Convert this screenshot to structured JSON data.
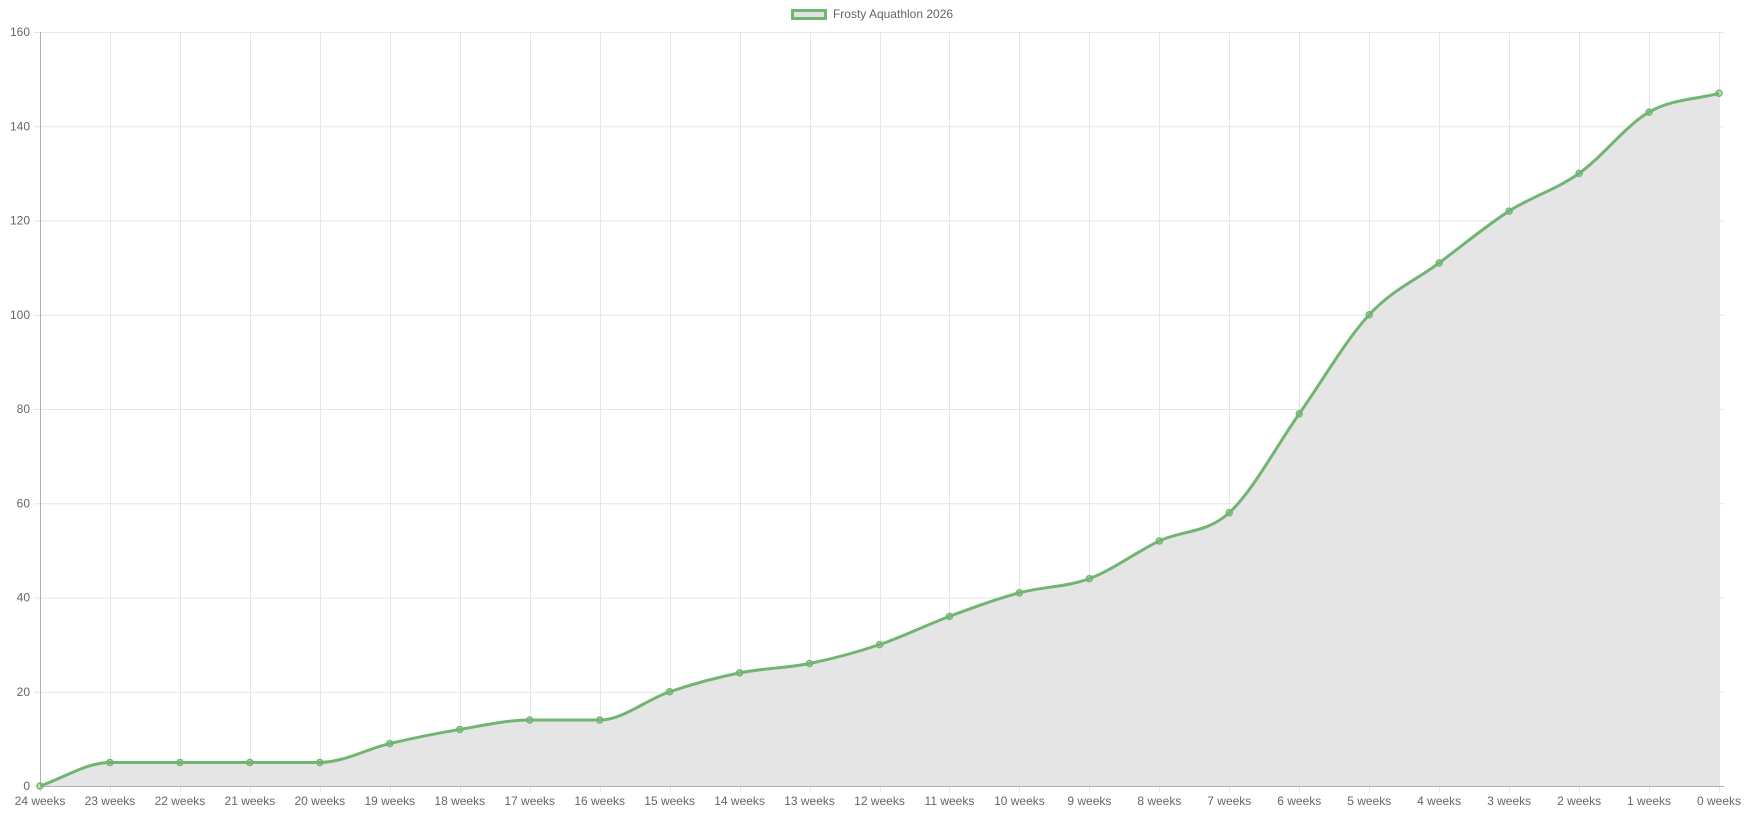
{
  "chart_data": {
    "type": "line",
    "categories": [
      "24 weeks",
      "23 weeks",
      "22 weeks",
      "21 weeks",
      "20 weeks",
      "19 weeks",
      "18 weeks",
      "17 weeks",
      "16 weeks",
      "15 weeks",
      "14 weeks",
      "13 weeks",
      "12 weeks",
      "11 weeks",
      "10 weeks",
      "9 weeks",
      "8 weeks",
      "7 weeks",
      "6 weeks",
      "5 weeks",
      "4 weeks",
      "3 weeks",
      "2 weeks",
      "1 weeks",
      "0 weeks"
    ],
    "series": [
      {
        "name": "Frosty Aquathlon 2026",
        "values": [
          0,
          5,
          5,
          5,
          5,
          9,
          12,
          14,
          14,
          20,
          24,
          26,
          30,
          36,
          41,
          44,
          52,
          58,
          79,
          100,
          111,
          122,
          130,
          143,
          147
        ]
      }
    ],
    "ylim": [
      0,
      160
    ],
    "y_ticks": [
      0,
      20,
      40,
      60,
      80,
      100,
      120,
      140,
      160
    ],
    "grid": true,
    "fill": true,
    "legend_position": "top",
    "colors": {
      "line": "#72b572",
      "fill": "#e2e2e2",
      "grid": "#e6e6e6",
      "axis": "#b0b0b0",
      "text": "#666666"
    }
  }
}
